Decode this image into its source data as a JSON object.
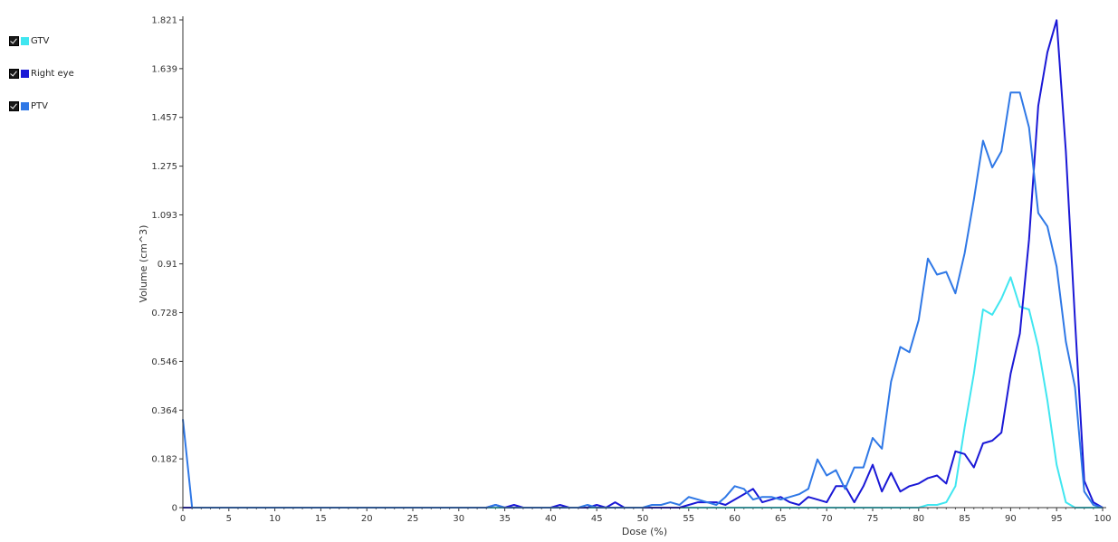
{
  "legend": {
    "items": [
      {
        "label": "GTV",
        "color": "#40E6F0",
        "checked": true
      },
      {
        "label": "Right eye",
        "color": "#1A18D6",
        "checked": true
      },
      {
        "label": "PTV",
        "color": "#2F78E6",
        "checked": true
      }
    ]
  },
  "chart_data": {
    "type": "line",
    "title": "",
    "xlabel": "Dose (%)",
    "ylabel": "Volume (cm^3)",
    "xlim": [
      0,
      100
    ],
    "ylim": [
      0,
      1.821
    ],
    "x_ticks": [
      "0",
      "5",
      "10",
      "15",
      "20",
      "25",
      "30",
      "35",
      "40",
      "45",
      "50",
      "55",
      "60",
      "65",
      "70",
      "75",
      "80",
      "85",
      "90",
      "95",
      "100"
    ],
    "y_ticks": [
      "0",
      "0.182",
      "0.364",
      "0.546",
      "0.728",
      "0.91",
      "1.093",
      "1.275",
      "1.457",
      "1.639",
      "1.821"
    ],
    "grid": false,
    "series": [
      {
        "name": "GTV",
        "color": "#40E6F0",
        "points": [
          [
            0,
            0
          ],
          [
            80,
            0
          ],
          [
            81,
            0.01
          ],
          [
            82,
            0.01
          ],
          [
            83,
            0.02
          ],
          [
            84,
            0.08
          ],
          [
            85,
            0.3
          ],
          [
            86,
            0.5
          ],
          [
            87,
            0.74
          ],
          [
            88,
            0.72
          ],
          [
            89,
            0.78
          ],
          [
            90,
            0.86
          ],
          [
            91,
            0.75
          ],
          [
            92,
            0.74
          ],
          [
            93,
            0.6
          ],
          [
            94,
            0.4
          ],
          [
            95,
            0.16
          ],
          [
            96,
            0.02
          ],
          [
            97,
            0
          ],
          [
            100,
            0
          ]
        ]
      },
      {
        "name": "Right eye",
        "color": "#1A18D6",
        "points": [
          [
            0,
            0
          ],
          [
            33,
            0
          ],
          [
            34,
            0.01
          ],
          [
            35,
            0
          ],
          [
            36,
            0.01
          ],
          [
            37,
            0
          ],
          [
            40,
            0
          ],
          [
            41,
            0.01
          ],
          [
            42,
            0
          ],
          [
            44,
            0
          ],
          [
            45,
            0.01
          ],
          [
            46,
            0
          ],
          [
            47,
            0.02
          ],
          [
            48,
            0
          ],
          [
            54,
            0
          ],
          [
            55,
            0.01
          ],
          [
            56,
            0.02
          ],
          [
            57,
            0.02
          ],
          [
            58,
            0.02
          ],
          [
            59,
            0.01
          ],
          [
            60,
            0.03
          ],
          [
            61,
            0.05
          ],
          [
            62,
            0.07
          ],
          [
            63,
            0.02
          ],
          [
            64,
            0.03
          ],
          [
            65,
            0.04
          ],
          [
            66,
            0.02
          ],
          [
            67,
            0.01
          ],
          [
            68,
            0.04
          ],
          [
            69,
            0.03
          ],
          [
            70,
            0.02
          ],
          [
            71,
            0.08
          ],
          [
            72,
            0.08
          ],
          [
            73,
            0.02
          ],
          [
            74,
            0.08
          ],
          [
            75,
            0.16
          ],
          [
            76,
            0.06
          ],
          [
            77,
            0.13
          ],
          [
            78,
            0.06
          ],
          [
            79,
            0.08
          ],
          [
            80,
            0.09
          ],
          [
            81,
            0.11
          ],
          [
            82,
            0.12
          ],
          [
            83,
            0.09
          ],
          [
            84,
            0.21
          ],
          [
            85,
            0.2
          ],
          [
            86,
            0.15
          ],
          [
            87,
            0.24
          ],
          [
            88,
            0.25
          ],
          [
            89,
            0.28
          ],
          [
            90,
            0.5
          ],
          [
            91,
            0.65
          ],
          [
            92,
            1.0
          ],
          [
            93,
            1.5
          ],
          [
            94,
            1.7
          ],
          [
            95,
            1.82
          ],
          [
            96,
            1.33
          ],
          [
            97,
            0.7
          ],
          [
            98,
            0.1
          ],
          [
            99,
            0.02
          ],
          [
            100,
            0
          ]
        ]
      },
      {
        "name": "PTV",
        "color": "#2F78E6",
        "points": [
          [
            0,
            0.33
          ],
          [
            1,
            0
          ],
          [
            33,
            0
          ],
          [
            34,
            0.01
          ],
          [
            35,
            0
          ],
          [
            43,
            0
          ],
          [
            44,
            0.01
          ],
          [
            45,
            0
          ],
          [
            50,
            0
          ],
          [
            51,
            0.01
          ],
          [
            52,
            0.01
          ],
          [
            53,
            0.02
          ],
          [
            54,
            0.01
          ],
          [
            55,
            0.04
          ],
          [
            56,
            0.03
          ],
          [
            57,
            0.02
          ],
          [
            58,
            0.01
          ],
          [
            59,
            0.04
          ],
          [
            60,
            0.08
          ],
          [
            61,
            0.07
          ],
          [
            62,
            0.03
          ],
          [
            63,
            0.04
          ],
          [
            64,
            0.04
          ],
          [
            65,
            0.03
          ],
          [
            66,
            0.04
          ],
          [
            67,
            0.05
          ],
          [
            68,
            0.07
          ],
          [
            69,
            0.18
          ],
          [
            70,
            0.12
          ],
          [
            71,
            0.14
          ],
          [
            72,
            0.07
          ],
          [
            73,
            0.15
          ],
          [
            74,
            0.15
          ],
          [
            75,
            0.26
          ],
          [
            76,
            0.22
          ],
          [
            77,
            0.47
          ],
          [
            78,
            0.6
          ],
          [
            79,
            0.58
          ],
          [
            80,
            0.7
          ],
          [
            81,
            0.93
          ],
          [
            82,
            0.87
          ],
          [
            83,
            0.88
          ],
          [
            84,
            0.8
          ],
          [
            85,
            0.95
          ],
          [
            86,
            1.15
          ],
          [
            87,
            1.37
          ],
          [
            88,
            1.27
          ],
          [
            89,
            1.33
          ],
          [
            90,
            1.55
          ],
          [
            91,
            1.55
          ],
          [
            92,
            1.42
          ],
          [
            93,
            1.1
          ],
          [
            94,
            1.05
          ],
          [
            95,
            0.9
          ],
          [
            96,
            0.62
          ],
          [
            97,
            0.45
          ],
          [
            98,
            0.06
          ],
          [
            99,
            0.01
          ],
          [
            100,
            0
          ]
        ]
      }
    ]
  }
}
